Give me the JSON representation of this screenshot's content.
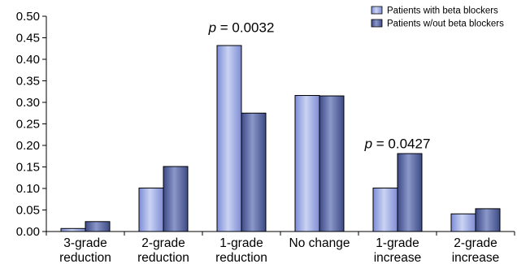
{
  "chart_data": {
    "type": "bar",
    "categories": [
      [
        "3-grade",
        "reduction"
      ],
      [
        "2-grade",
        "reduction"
      ],
      [
        "1-grade",
        "reduction"
      ],
      [
        "No change"
      ],
      [
        "1-grade",
        "increase"
      ],
      [
        "2-grade",
        "increase"
      ]
    ],
    "series": [
      {
        "name": "Patients with beta blockers",
        "values": [
          0.007,
          0.101,
          0.432,
          0.316,
          0.101,
          0.041
        ],
        "color_light": "#c9d3f3",
        "color_dark": "#7e8dd6"
      },
      {
        "name": "Patients w/out beta blockers",
        "values": [
          0.023,
          0.151,
          0.275,
          0.315,
          0.181,
          0.053
        ],
        "color_light": "#8a97c9",
        "color_dark": "#3d4a86"
      }
    ],
    "ylim": [
      0,
      0.5
    ],
    "yticks": [
      "0.00",
      "0.05",
      "0.10",
      "0.15",
      "0.20",
      "0.25",
      "0.30",
      "0.35",
      "0.40",
      "0.45",
      "0.50"
    ],
    "annotations": [
      {
        "category_index": 2,
        "italic": "p",
        "text": " = 0.0032",
        "y_value": 0.475
      },
      {
        "category_index": 4,
        "italic": "p",
        "text": " = 0.0427",
        "y_value": 0.205
      }
    ],
    "legend_position": "top-right",
    "grid": false
  }
}
